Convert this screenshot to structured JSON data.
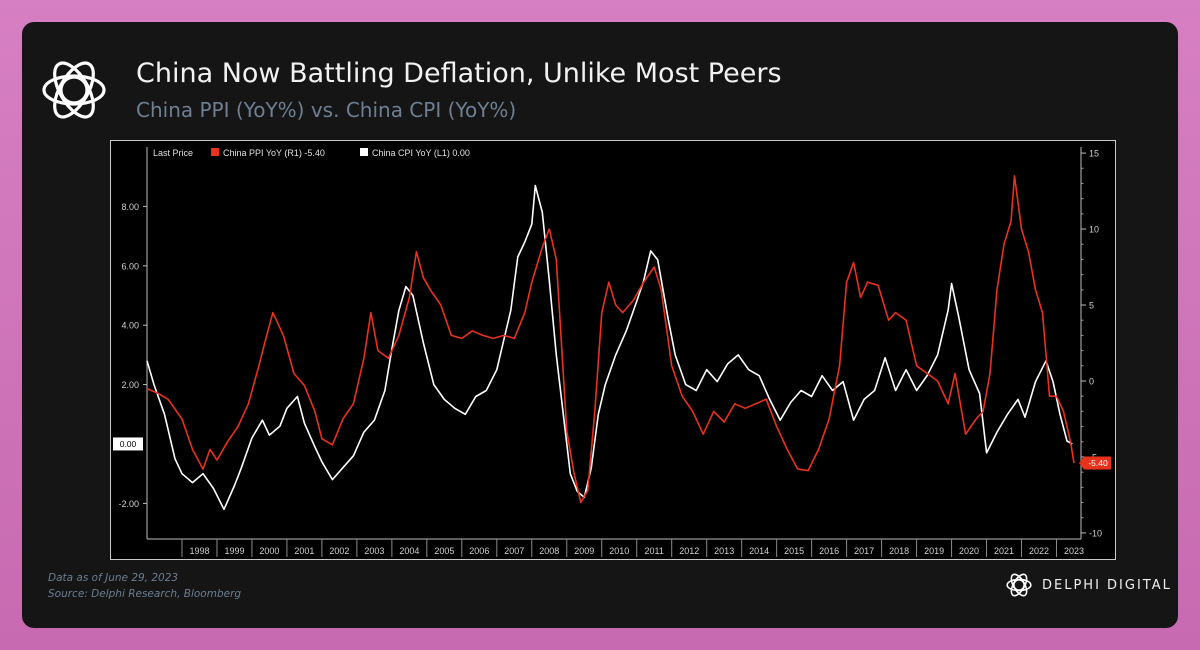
{
  "header": {
    "title": "China Now Battling Deflation, Unlike Most Peers",
    "subtitle": "China PPI (YoY%) vs. China CPI (YoY%)"
  },
  "footer": {
    "date_note": "Data as of June 29, 2023",
    "source_note": "Source: Delphi Research, Bloomberg",
    "brand": "DELPHI DIGITAL"
  },
  "colors": {
    "ppi": "#e8321c",
    "cpi": "#ffffff",
    "axis_text": "#cfcfcf",
    "background": "#000000"
  },
  "chart_data": {
    "type": "line",
    "legend": {
      "prefix": "Last Price",
      "ppi_label": "China PPI YoY  (R1) -5.40",
      "cpi_label": "China CPI YoY  (L1) 0.00"
    },
    "x_range": [
      1997.0,
      2023.7
    ],
    "x_tick_labels": [
      "1998",
      "1999",
      "2000",
      "2001",
      "2002",
      "2003",
      "2004",
      "2005",
      "2006",
      "2007",
      "2008",
      "2009",
      "2010",
      "2011",
      "2012",
      "2013",
      "2014",
      "2015",
      "2016",
      "2017",
      "2018",
      "2019",
      "2020",
      "2021",
      "2022",
      "2023"
    ],
    "left_axis": {
      "ylim": [
        -3.2,
        10.0
      ],
      "ticks": [
        "8.00",
        "6.00",
        "4.00",
        "2.00",
        "-2.00"
      ],
      "tick_values": [
        8,
        6,
        4,
        2,
        -2
      ]
    },
    "right_axis": {
      "ylim": [
        -10.4,
        15.4
      ],
      "ticks": [
        "15",
        "10",
        "5",
        "0",
        "-5",
        "-10"
      ],
      "tick_values": [
        15,
        10,
        5,
        0,
        -5,
        -10
      ]
    },
    "last_values": {
      "cpi": "0.00",
      "ppi": "-5.40"
    },
    "series": [
      {
        "name": "China CPI YoY",
        "axis": "left",
        "x": [
          1997.0,
          1997.2,
          1997.5,
          1997.8,
          1998.0,
          1998.3,
          1998.6,
          1998.9,
          1999.2,
          1999.5,
          1999.7,
          2000.0,
          2000.3,
          2000.5,
          2000.8,
          2001.0,
          2001.3,
          2001.5,
          2001.8,
          2002.0,
          2002.3,
          2002.6,
          2002.9,
          2003.2,
          2003.5,
          2003.8,
          2004.0,
          2004.2,
          2004.4,
          2004.6,
          2004.9,
          2005.2,
          2005.5,
          2005.8,
          2006.1,
          2006.4,
          2006.7,
          2007.0,
          2007.2,
          2007.4,
          2007.6,
          2007.8,
          2008.0,
          2008.1,
          2008.3,
          2008.5,
          2008.7,
          2008.9,
          2009.1,
          2009.3,
          2009.5,
          2009.7,
          2009.9,
          2010.1,
          2010.4,
          2010.7,
          2011.0,
          2011.2,
          2011.4,
          2011.6,
          2011.9,
          2012.1,
          2012.4,
          2012.7,
          2013.0,
          2013.3,
          2013.6,
          2013.9,
          2014.2,
          2014.5,
          2014.8,
          2015.1,
          2015.4,
          2015.7,
          2016.0,
          2016.3,
          2016.6,
          2016.9,
          2017.2,
          2017.5,
          2017.8,
          2018.1,
          2018.4,
          2018.7,
          2019.0,
          2019.3,
          2019.6,
          2019.9,
          2020.0,
          2020.2,
          2020.5,
          2020.8,
          2021.0,
          2021.3,
          2021.6,
          2021.9,
          2022.1,
          2022.4,
          2022.7,
          2022.9,
          2023.1,
          2023.3,
          2023.45
        ],
        "values": [
          2.8,
          2.0,
          1.0,
          -0.5,
          -1.0,
          -1.3,
          -1.0,
          -1.5,
          -2.2,
          -1.4,
          -0.8,
          0.2,
          0.8,
          0.3,
          0.6,
          1.2,
          1.6,
          0.7,
          -0.1,
          -0.6,
          -1.2,
          -0.8,
          -0.4,
          0.4,
          0.8,
          1.8,
          3.2,
          4.5,
          5.3,
          5.0,
          3.4,
          2.0,
          1.5,
          1.2,
          1.0,
          1.6,
          1.8,
          2.5,
          3.5,
          4.5,
          6.3,
          6.8,
          7.4,
          8.7,
          7.8,
          5.5,
          3.0,
          1.0,
          -1.0,
          -1.6,
          -1.8,
          -0.8,
          1.0,
          2.0,
          3.0,
          3.8,
          4.8,
          5.5,
          6.5,
          6.2,
          4.2,
          3.0,
          2.0,
          1.8,
          2.5,
          2.1,
          2.7,
          3.0,
          2.5,
          2.3,
          1.5,
          0.8,
          1.4,
          1.8,
          1.6,
          2.3,
          1.8,
          2.1,
          0.8,
          1.5,
          1.8,
          2.9,
          1.8,
          2.5,
          1.8,
          2.3,
          3.0,
          4.5,
          5.4,
          4.3,
          2.5,
          1.7,
          -0.3,
          0.4,
          1.0,
          1.5,
          0.9,
          2.1,
          2.8,
          2.1,
          1.0,
          0.1,
          0.0
        ]
      },
      {
        "name": "China PPI YoY",
        "axis": "right",
        "x": [
          1997.0,
          1997.3,
          1997.6,
          1998.0,
          1998.3,
          1998.6,
          1998.8,
          1999.0,
          1999.3,
          1999.6,
          1999.9,
          2000.2,
          2000.4,
          2000.6,
          2000.9,
          2001.2,
          2001.5,
          2001.8,
          2002.0,
          2002.3,
          2002.6,
          2002.9,
          2003.2,
          2003.4,
          2003.6,
          2003.9,
          2004.2,
          2004.5,
          2004.7,
          2004.9,
          2005.1,
          2005.4,
          2005.7,
          2006.0,
          2006.3,
          2006.6,
          2006.9,
          2007.2,
          2007.5,
          2007.8,
          2008.0,
          2008.3,
          2008.5,
          2008.7,
          2008.9,
          2009.0,
          2009.2,
          2009.4,
          2009.6,
          2009.8,
          2010.0,
          2010.2,
          2010.4,
          2010.6,
          2010.9,
          2011.2,
          2011.5,
          2011.7,
          2012.0,
          2012.3,
          2012.6,
          2012.9,
          2013.2,
          2013.5,
          2013.8,
          2014.1,
          2014.4,
          2014.7,
          2015.0,
          2015.3,
          2015.6,
          2015.9,
          2016.2,
          2016.5,
          2016.8,
          2017.0,
          2017.2,
          2017.4,
          2017.6,
          2017.9,
          2018.2,
          2018.4,
          2018.7,
          2019.0,
          2019.3,
          2019.6,
          2019.9,
          2020.1,
          2020.4,
          2020.7,
          2020.9,
          2021.1,
          2021.3,
          2021.5,
          2021.7,
          2021.8,
          2022.0,
          2022.2,
          2022.4,
          2022.6,
          2022.8,
          2023.0,
          2023.2,
          2023.4,
          2023.5
        ],
        "values": [
          -0.5,
          -0.8,
          -1.2,
          -2.5,
          -4.5,
          -5.8,
          -4.5,
          -5.2,
          -4.0,
          -3.0,
          -1.5,
          1.0,
          2.8,
          4.5,
          3.0,
          0.5,
          -0.3,
          -2.0,
          -3.8,
          -4.2,
          -2.5,
          -1.5,
          1.5,
          4.5,
          2.0,
          1.5,
          3.0,
          5.5,
          8.5,
          6.8,
          6.0,
          5.0,
          3.0,
          2.8,
          3.3,
          3.0,
          2.8,
          3.0,
          2.8,
          4.5,
          6.5,
          8.8,
          10.0,
          8.0,
          0.5,
          -3.3,
          -6.0,
          -8.0,
          -7.2,
          -2.0,
          4.5,
          6.5,
          5.0,
          4.5,
          5.3,
          6.5,
          7.5,
          6.0,
          1.0,
          -1.0,
          -2.0,
          -3.5,
          -2.0,
          -2.7,
          -1.5,
          -1.8,
          -1.5,
          -1.2,
          -3.0,
          -4.5,
          -5.8,
          -5.9,
          -4.5,
          -2.5,
          1.0,
          6.5,
          7.8,
          5.5,
          6.5,
          6.3,
          4.0,
          4.5,
          4.0,
          1.0,
          0.5,
          0.0,
          -1.5,
          0.5,
          -3.5,
          -2.5,
          -2.0,
          0.5,
          6.0,
          9.0,
          10.5,
          13.5,
          10.0,
          8.5,
          6.0,
          4.5,
          -1.0,
          -1.0,
          -2.0,
          -4.0,
          -5.4
        ]
      }
    ]
  }
}
